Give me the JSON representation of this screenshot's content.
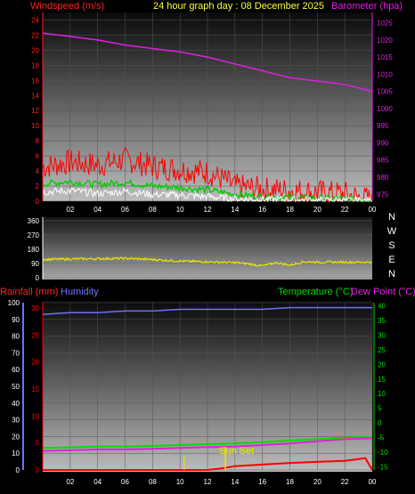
{
  "header": {
    "windspeed_label": "Windspeed (m/s)",
    "title": "24 hour graph day : 08 December 2025",
    "barometer_label": "Barometer (hpa)"
  },
  "bottom_header": {
    "rainfall_label": "Rainfall (mm)",
    "humidity_label": "Humidity",
    "temperature_label": "Temperature (°C)",
    "dewpoint_label": "Dew Point (°C)"
  },
  "sunset_label": "Sun Set",
  "colors": {
    "wind_axis": "#ff2020",
    "wind_gust": "#ff0000",
    "wind_avg": "#00cc00",
    "wind_low": "#ffffff",
    "barometer": "#e020e0",
    "direction": "#e8e800",
    "rain": "#ff0000",
    "humidity": "#7070ff",
    "temperature": "#00dd00",
    "dewpoint": "#e020e0",
    "sunset": "#e8e800",
    "title": "#ffff40"
  },
  "chart_data": [
    {
      "type": "line",
      "name": "wind-barometer",
      "x_ticks": [
        "02",
        "04",
        "06",
        "08",
        "10",
        "12",
        "14",
        "16",
        "18",
        "20",
        "22",
        "00"
      ],
      "y_left_ticks": [
        0,
        2,
        4,
        6,
        8,
        10,
        12,
        14,
        16,
        18,
        20,
        22,
        24
      ],
      "y_left_range": [
        0,
        25
      ],
      "y_right_ticks": [
        975,
        980,
        985,
        990,
        995,
        1000,
        1005,
        1010,
        1015,
        1020,
        1025
      ],
      "y_right_range": [
        973,
        1028
      ],
      "series": [
        {
          "name": "Barometer",
          "axis": "right",
          "x": [
            0,
            2,
            4,
            6,
            8,
            10,
            12,
            14,
            16,
            18,
            20,
            22,
            24
          ],
          "y": [
            1022,
            1021,
            1020,
            1018.5,
            1017.5,
            1016.5,
            1015,
            1013,
            1011,
            1009,
            1008,
            1007,
            1005
          ]
        },
        {
          "name": "gust",
          "axis": "left",
          "x": [
            0,
            2,
            4,
            6,
            8,
            10,
            12,
            13,
            14,
            16,
            18,
            20,
            22,
            23,
            24
          ],
          "y": [
            4.5,
            5.2,
            4.8,
            5.5,
            4.6,
            4.2,
            3.8,
            3.0,
            2.0,
            1.6,
            1.4,
            1.2,
            1.0,
            0.5,
            0.2
          ]
        },
        {
          "name": "average",
          "axis": "left",
          "x": [
            0,
            2,
            4,
            6,
            8,
            10,
            12,
            14,
            16,
            18,
            20,
            22,
            24
          ],
          "y": [
            2.3,
            2.6,
            2.2,
            2.5,
            2.0,
            1.8,
            1.5,
            0.9,
            0.6,
            0.5,
            0.4,
            0.3,
            0.1
          ]
        },
        {
          "name": "low",
          "axis": "left",
          "x": [
            0,
            2,
            4,
            6,
            8,
            10,
            12,
            14,
            16,
            18,
            20,
            22,
            24
          ],
          "y": [
            1.2,
            1.4,
            1.0,
            1.3,
            0.9,
            0.8,
            0.6,
            0.3,
            0.2,
            0.2,
            0.1,
            0.1,
            0.0
          ]
        }
      ]
    },
    {
      "type": "line",
      "name": "wind-direction",
      "y_ticks": [
        0,
        90,
        180,
        270,
        360
      ],
      "y_range": [
        0,
        360
      ],
      "compass": [
        "N",
        "W",
        "S",
        "E",
        "N"
      ],
      "series": [
        {
          "name": "direction",
          "x": [
            0,
            2,
            4,
            6,
            8,
            10,
            12,
            14,
            15,
            16,
            17,
            18,
            19,
            20,
            22,
            24
          ],
          "y": [
            115,
            118,
            120,
            122,
            115,
            105,
            100,
            95,
            88,
            75,
            95,
            80,
            100,
            98,
            98,
            98
          ]
        }
      ]
    },
    {
      "type": "line",
      "name": "rain-humidity-temperature",
      "x_ticks": [
        "02",
        "04",
        "06",
        "08",
        "10",
        "12",
        "14",
        "16",
        "18",
        "20",
        "22",
        "00"
      ],
      "y_left_outer_ticks": [
        0,
        10,
        20,
        30,
        40,
        50,
        60,
        70,
        80,
        90,
        100
      ],
      "y_left_inner_ticks": [
        0,
        5,
        10,
        15,
        20,
        25,
        30
      ],
      "y_left_inner_range": [
        0,
        31
      ],
      "y_right_ticks": [
        -15,
        -10,
        -5,
        0,
        5,
        10,
        15,
        20,
        25,
        30,
        35,
        40
      ],
      "y_right_range": [
        -16,
        41
      ],
      "series": [
        {
          "name": "Humidity",
          "axis": "percent",
          "x": [
            0,
            2,
            4,
            6,
            8,
            10,
            12,
            14,
            16,
            18,
            20,
            22,
            24
          ],
          "y": [
            93,
            94,
            94,
            95,
            95,
            96,
            96,
            96,
            96,
            97,
            97,
            97,
            97
          ]
        },
        {
          "name": "Temperature",
          "axis": "right",
          "x": [
            0,
            2,
            4,
            6,
            8,
            10,
            12,
            14,
            16,
            18,
            20,
            22,
            24
          ],
          "y": [
            -8.5,
            -8.3,
            -8,
            -8,
            -7.8,
            -7.5,
            -7.2,
            -7,
            -6.5,
            -6,
            -5.5,
            -5,
            -4.7
          ]
        },
        {
          "name": "Dew Point",
          "axis": "right",
          "x": [
            0,
            2,
            4,
            6,
            8,
            10,
            12,
            14,
            16,
            18,
            20,
            22,
            24
          ],
          "y": [
            -9.5,
            -9.3,
            -9,
            -9,
            -8.8,
            -8.5,
            -8.2,
            -8,
            -7.5,
            -7,
            -6.2,
            -5.5,
            -5.2
          ]
        },
        {
          "name": "Rainfall",
          "axis": "rain",
          "x": [
            0,
            2,
            4,
            6,
            8,
            10,
            12,
            13,
            14,
            16,
            18,
            20,
            22,
            23.5,
            24
          ],
          "y": [
            0,
            0,
            0,
            0,
            0,
            0,
            0,
            0.3,
            0.7,
            1.0,
            1.3,
            1.5,
            1.7,
            2.2,
            0.0
          ]
        }
      ],
      "sunset_hour": 13.3
    }
  ]
}
